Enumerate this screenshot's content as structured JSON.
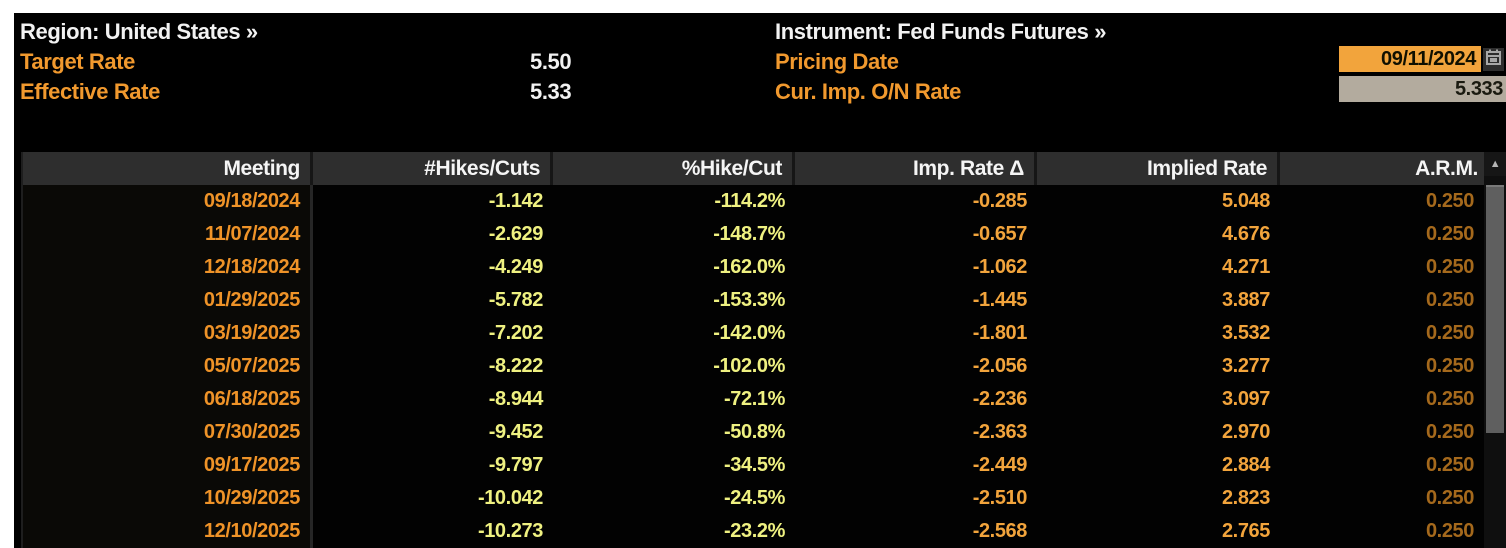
{
  "topbar": {
    "region": {
      "label": "Region: United States »"
    },
    "instrument": {
      "label": "Instrument: Fed Funds Futures »"
    },
    "target_rate": {
      "label": "Target Rate",
      "value": "5.50"
    },
    "effective_rate": {
      "label": "Effective Rate",
      "value": "5.33"
    },
    "pricing_date": {
      "label": "Pricing Date",
      "value": "09/11/2024"
    },
    "cur_imp_on_rate": {
      "label": "Cur. Imp. O/N Rate",
      "value": "5.333"
    }
  },
  "table": {
    "columns": [
      "Meeting",
      "#Hikes/Cuts",
      "%Hike/Cut",
      "Imp. Rate Δ",
      "Implied Rate",
      "A.R.M."
    ],
    "rows": [
      [
        "09/18/2024",
        "-1.142",
        "-114.2%",
        "-0.285",
        "5.048",
        "0.250"
      ],
      [
        "11/07/2024",
        "-2.629",
        "-148.7%",
        "-0.657",
        "4.676",
        "0.250"
      ],
      [
        "12/18/2024",
        "-4.249",
        "-162.0%",
        "-1.062",
        "4.271",
        "0.250"
      ],
      [
        "01/29/2025",
        "-5.782",
        "-153.3%",
        "-1.445",
        "3.887",
        "0.250"
      ],
      [
        "03/19/2025",
        "-7.202",
        "-142.0%",
        "-1.801",
        "3.532",
        "0.250"
      ],
      [
        "05/07/2025",
        "-8.222",
        "-102.0%",
        "-2.056",
        "3.277",
        "0.250"
      ],
      [
        "06/18/2025",
        "-8.944",
        "-72.1%",
        "-2.236",
        "3.097",
        "0.250"
      ],
      [
        "07/30/2025",
        "-9.452",
        "-50.8%",
        "-2.363",
        "2.970",
        "0.250"
      ],
      [
        "09/17/2025",
        "-9.797",
        "-34.5%",
        "-2.449",
        "2.884",
        "0.250"
      ],
      [
        "10/29/2025",
        "-10.042",
        "-24.5%",
        "-2.510",
        "2.823",
        "0.250"
      ],
      [
        "12/10/2025",
        "-10.273",
        "-23.2%",
        "-2.568",
        "2.765",
        "0.250"
      ]
    ]
  },
  "scrollbar": {
    "up_arrow": "▲"
  },
  "colors": {
    "accent_orange": "#f1992e",
    "meeting_date_orange": "#ef9328",
    "value_yellow": "#eff181",
    "value_amber": "#f2a43c",
    "value_dim_orange": "#a5691c",
    "date_field_bg": "#f2a43c",
    "rate_field_bg": "#b3ab9e",
    "table_header_bg": "#2e2e2e"
  }
}
